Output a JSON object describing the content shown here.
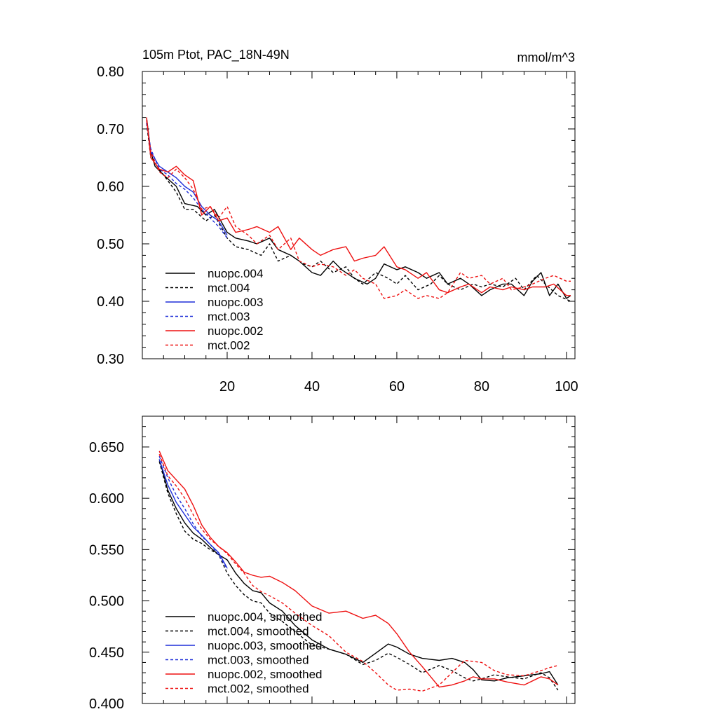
{
  "chart_data": [
    {
      "type": "line",
      "title": "105m Ptot, PAC_18N-49N",
      "units": "mmol/m^3",
      "xlabel": "",
      "ylabel": "",
      "xlim": [
        0,
        102
      ],
      "ylim": [
        0.3,
        0.8
      ],
      "xticks": [
        20,
        40,
        60,
        80,
        100
      ],
      "xtick_labels": [
        "20",
        "40",
        "60",
        "80",
        "100"
      ],
      "yticks": [
        0.3,
        0.4,
        0.5,
        0.6,
        0.7,
        0.8
      ],
      "ytick_labels": [
        "0.30",
        "0.40",
        "0.50",
        "0.60",
        "0.70",
        "0.80"
      ],
      "legend_position": "bottom-left",
      "series": [
        {
          "name": "nuopc.004",
          "color": "#000000",
          "dash": "solid",
          "x": [
            1,
            2,
            3,
            5,
            8,
            10,
            13,
            15,
            17,
            20,
            22,
            25,
            27,
            30,
            32,
            35,
            37,
            40,
            42,
            45,
            47,
            50,
            53,
            55,
            57,
            60,
            62,
            65,
            67,
            70,
            72,
            75,
            77,
            80,
            82,
            85,
            87,
            90,
            92,
            94,
            96,
            98,
            100,
            101
          ],
          "values": [
            0.72,
            0.66,
            0.635,
            0.62,
            0.6,
            0.57,
            0.565,
            0.55,
            0.56,
            0.52,
            0.51,
            0.505,
            0.5,
            0.51,
            0.49,
            0.48,
            0.47,
            0.45,
            0.445,
            0.47,
            0.455,
            0.44,
            0.43,
            0.44,
            0.465,
            0.455,
            0.46,
            0.45,
            0.44,
            0.45,
            0.43,
            0.44,
            0.43,
            0.41,
            0.42,
            0.43,
            0.43,
            0.41,
            0.435,
            0.45,
            0.41,
            0.43,
            0.405,
            0.41
          ]
        },
        {
          "name": "mct.004",
          "color": "#000000",
          "dash": "dashed",
          "x": [
            1,
            2,
            4,
            6,
            8,
            10,
            12,
            15,
            17,
            20,
            22,
            25,
            28,
            30,
            32,
            35,
            38,
            40,
            42,
            45,
            48,
            50,
            52,
            55,
            58,
            60,
            62,
            65,
            68,
            70,
            72,
            75,
            78,
            80,
            82,
            85,
            88,
            90,
            93,
            95,
            98,
            101
          ],
          "values": [
            0.71,
            0.65,
            0.63,
            0.61,
            0.59,
            0.56,
            0.56,
            0.54,
            0.55,
            0.51,
            0.495,
            0.49,
            0.48,
            0.5,
            0.47,
            0.48,
            0.465,
            0.46,
            0.47,
            0.45,
            0.46,
            0.44,
            0.43,
            0.45,
            0.44,
            0.43,
            0.445,
            0.42,
            0.43,
            0.445,
            0.43,
            0.42,
            0.43,
            0.425,
            0.43,
            0.425,
            0.44,
            0.42,
            0.445,
            0.43,
            0.41,
            0.4
          ]
        },
        {
          "name": "nuopc.003",
          "color": "#1f2fd8",
          "dash": "solid",
          "x": [
            1,
            2,
            4,
            6,
            8,
            10,
            12,
            14,
            16,
            18,
            20
          ],
          "values": [
            0.715,
            0.66,
            0.635,
            0.625,
            0.615,
            0.6,
            0.59,
            0.565,
            0.55,
            0.54,
            0.515
          ]
        },
        {
          "name": "mct.003",
          "color": "#1f2fd8",
          "dash": "dashed",
          "x": [
            1,
            2,
            4,
            6,
            8,
            10,
            12,
            14,
            16,
            18,
            20
          ],
          "values": [
            0.71,
            0.665,
            0.63,
            0.62,
            0.605,
            0.595,
            0.58,
            0.56,
            0.545,
            0.53,
            0.51
          ]
        },
        {
          "name": "nuopc.002",
          "color": "#ee1111",
          "dash": "solid",
          "x": [
            1,
            2,
            4,
            6,
            8,
            10,
            12,
            14,
            16,
            18,
            20,
            22,
            25,
            27,
            30,
            32,
            35,
            37,
            40,
            42,
            45,
            48,
            50,
            52,
            55,
            57,
            60,
            62,
            65,
            67,
            70,
            72,
            75,
            77,
            80,
            82,
            85,
            87,
            90,
            92,
            95,
            97,
            100,
            101
          ],
          "values": [
            0.72,
            0.65,
            0.63,
            0.625,
            0.635,
            0.62,
            0.61,
            0.55,
            0.565,
            0.54,
            0.545,
            0.52,
            0.525,
            0.53,
            0.52,
            0.53,
            0.49,
            0.51,
            0.49,
            0.48,
            0.49,
            0.495,
            0.47,
            0.475,
            0.48,
            0.495,
            0.46,
            0.455,
            0.44,
            0.45,
            0.42,
            0.415,
            0.425,
            0.43,
            0.415,
            0.425,
            0.42,
            0.425,
            0.42,
            0.425,
            0.425,
            0.43,
            0.41,
            0.41
          ]
        },
        {
          "name": "mct.002",
          "color": "#ee1111",
          "dash": "dashed",
          "x": [
            1,
            2,
            4,
            6,
            8,
            10,
            12,
            14,
            16,
            18,
            20,
            22,
            25,
            27,
            30,
            32,
            35,
            37,
            40,
            42,
            45,
            48,
            50,
            52,
            55,
            57,
            60,
            62,
            65,
            67,
            70,
            72,
            75,
            77,
            80,
            82,
            85,
            87,
            90,
            92,
            95,
            97,
            100,
            101
          ],
          "values": [
            0.715,
            0.66,
            0.625,
            0.615,
            0.63,
            0.615,
            0.595,
            0.56,
            0.565,
            0.545,
            0.565,
            0.53,
            0.515,
            0.5,
            0.515,
            0.49,
            0.51,
            0.47,
            0.46,
            0.465,
            0.46,
            0.445,
            0.455,
            0.44,
            0.43,
            0.405,
            0.41,
            0.42,
            0.405,
            0.41,
            0.405,
            0.415,
            0.45,
            0.44,
            0.445,
            0.43,
            0.44,
            0.42,
            0.425,
            0.43,
            0.44,
            0.445,
            0.435,
            0.435
          ]
        }
      ]
    },
    {
      "type": "line",
      "title": "",
      "xlabel": "",
      "ylabel": "",
      "xlim": [
        0,
        102
      ],
      "ylim": [
        0.4,
        0.68
      ],
      "xticks": [
        20,
        40,
        60,
        80,
        100
      ],
      "yticks": [
        0.4,
        0.45,
        0.5,
        0.55,
        0.6,
        0.65
      ],
      "ytick_labels": [
        "0.400",
        "0.450",
        "0.500",
        "0.550",
        "0.600",
        "0.650"
      ],
      "legend_position": "bottom-left",
      "series": [
        {
          "name": "nuopc.004, smoothed",
          "color": "#000000",
          "dash": "solid",
          "x": [
            4,
            6,
            8,
            10,
            12,
            14,
            16,
            18,
            20,
            22,
            24,
            26,
            28,
            30,
            33,
            36,
            40,
            44,
            48,
            52,
            55,
            58,
            60,
            63,
            66,
            70,
            73,
            76,
            78,
            80,
            83,
            86,
            90,
            94,
            96,
            98
          ],
          "values": [
            0.638,
            0.608,
            0.59,
            0.576,
            0.566,
            0.56,
            0.552,
            0.545,
            0.54,
            0.527,
            0.517,
            0.51,
            0.508,
            0.498,
            0.49,
            0.476,
            0.462,
            0.453,
            0.448,
            0.44,
            0.449,
            0.458,
            0.455,
            0.448,
            0.444,
            0.442,
            0.444,
            0.44,
            0.433,
            0.423,
            0.422,
            0.425,
            0.427,
            0.429,
            0.431,
            0.418
          ]
        },
        {
          "name": "mct.004, smoothed",
          "color": "#000000",
          "dash": "dashed",
          "x": [
            4,
            6,
            8,
            10,
            12,
            14,
            16,
            18,
            20,
            22,
            24,
            26,
            28,
            30,
            33,
            36,
            40,
            44,
            48,
            52,
            55,
            58,
            60,
            63,
            66,
            70,
            73,
            76,
            78,
            80,
            83,
            86,
            90,
            94,
            96,
            98
          ],
          "values": [
            0.636,
            0.605,
            0.585,
            0.568,
            0.56,
            0.556,
            0.55,
            0.545,
            0.527,
            0.515,
            0.506,
            0.5,
            0.498,
            0.488,
            0.48,
            0.47,
            0.457,
            0.453,
            0.448,
            0.438,
            0.442,
            0.449,
            0.445,
            0.438,
            0.43,
            0.437,
            0.432,
            0.425,
            0.422,
            0.424,
            0.428,
            0.426,
            0.424,
            0.43,
            0.425,
            0.413
          ]
        },
        {
          "name": "nuopc.003, smoothed",
          "color": "#1f2fd8",
          "dash": "solid",
          "x": [
            4,
            6,
            8,
            10,
            12,
            14,
            16,
            18,
            20
          ],
          "values": [
            0.638,
            0.613,
            0.596,
            0.584,
            0.572,
            0.564,
            0.555,
            0.547,
            0.532
          ]
        },
        {
          "name": "mct.003, smoothed",
          "color": "#1f2fd8",
          "dash": "dashed",
          "x": [
            4,
            6,
            8,
            10,
            12,
            14,
            16,
            18,
            20
          ],
          "values": [
            0.641,
            0.62,
            0.603,
            0.59,
            0.575,
            0.563,
            0.555,
            0.545,
            0.531
          ]
        },
        {
          "name": "nuopc.002, smoothed",
          "color": "#ee1111",
          "dash": "solid",
          "x": [
            4,
            6,
            8,
            10,
            12,
            14,
            16,
            18,
            20,
            22,
            24,
            26,
            28,
            30,
            33,
            36,
            40,
            44,
            48,
            52,
            55,
            58,
            60,
            63,
            66,
            70,
            73,
            76,
            78,
            80,
            83,
            86,
            90,
            94,
            96,
            98
          ],
          "values": [
            0.646,
            0.627,
            0.618,
            0.609,
            0.593,
            0.574,
            0.562,
            0.553,
            0.547,
            0.538,
            0.528,
            0.525,
            0.523,
            0.524,
            0.518,
            0.51,
            0.495,
            0.488,
            0.49,
            0.483,
            0.486,
            0.478,
            0.468,
            0.45,
            0.436,
            0.416,
            0.418,
            0.422,
            0.426,
            0.424,
            0.424,
            0.421,
            0.418,
            0.426,
            0.424,
            0.418
          ]
        },
        {
          "name": "mct.002, smoothed",
          "color": "#ee1111",
          "dash": "dashed",
          "x": [
            4,
            6,
            8,
            10,
            12,
            14,
            16,
            18,
            20,
            22,
            24,
            26,
            28,
            30,
            33,
            36,
            40,
            44,
            48,
            52,
            55,
            58,
            60,
            63,
            66,
            70,
            73,
            76,
            78,
            80,
            83,
            86,
            90,
            94,
            96,
            98
          ],
          "values": [
            0.643,
            0.622,
            0.612,
            0.6,
            0.584,
            0.57,
            0.56,
            0.553,
            0.546,
            0.536,
            0.527,
            0.515,
            0.509,
            0.505,
            0.498,
            0.488,
            0.476,
            0.466,
            0.45,
            0.441,
            0.43,
            0.418,
            0.413,
            0.414,
            0.412,
            0.418,
            0.43,
            0.442,
            0.441,
            0.44,
            0.432,
            0.428,
            0.427,
            0.432,
            0.435,
            0.437
          ]
        }
      ]
    }
  ]
}
